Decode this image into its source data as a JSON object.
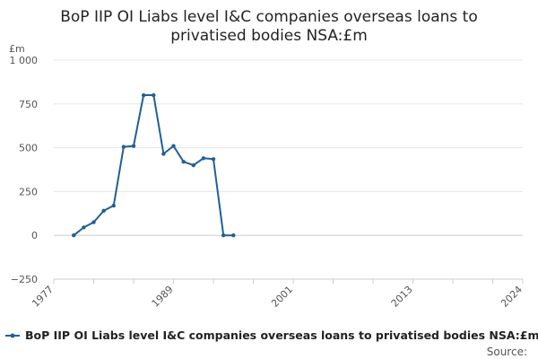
{
  "chart_data": {
    "type": "line",
    "title_line1": "BoP IIP OI Liabs level I&C companies overseas loans to",
    "title_line2": "privatised bodies NSA:£m",
    "ylabel": "£m",
    "ylim": [
      -250,
      1000
    ],
    "yticks": [
      -250,
      0,
      250,
      500,
      750,
      1000
    ],
    "ytick_labels": [
      "−250",
      "0",
      "250",
      "500",
      "750",
      "1 000"
    ],
    "xlim": [
      1977,
      2024
    ],
    "xticks": [
      1977,
      1989,
      2001,
      2013,
      2024
    ],
    "xtick_labels": [
      "1977",
      "1989",
      "2001",
      "2013",
      "2024"
    ],
    "grid": true,
    "legend_position": "bottom",
    "series": [
      {
        "name": "BoP IIP OI Liabs level I&C companies overseas loans to privatised bodies NSA:£m",
        "color": "#206095",
        "x": [
          1979,
          1980,
          1981,
          1982,
          1983,
          1984,
          1985,
          1986,
          1987,
          1988,
          1989,
          1990,
          1991,
          1992,
          1993,
          1994,
          1995
        ],
        "y": [
          0,
          45,
          75,
          140,
          170,
          505,
          510,
          800,
          800,
          465,
          510,
          420,
          400,
          440,
          435,
          0,
          0
        ]
      }
    ],
    "source_label": "Source:"
  }
}
